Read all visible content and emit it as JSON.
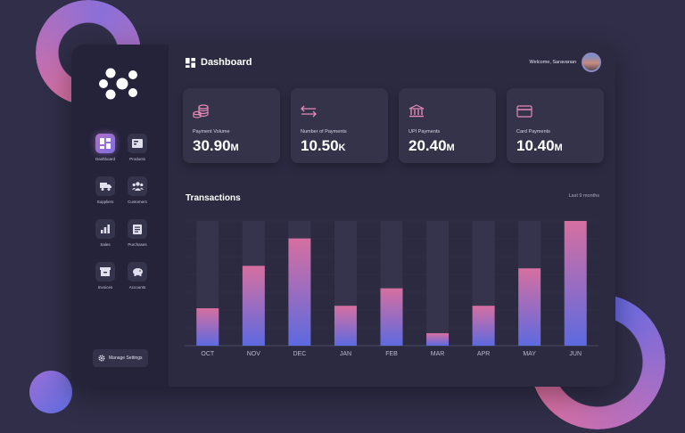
{
  "header": {
    "title": "Dashboard",
    "welcome": "Welcome, Saravanan"
  },
  "sidebar": {
    "items": [
      {
        "label": "Dashboard",
        "icon": "dashboard-icon",
        "active": true
      },
      {
        "label": "Products",
        "icon": "products-icon",
        "active": false
      },
      {
        "label": "Suppliers",
        "icon": "truck-icon",
        "active": false
      },
      {
        "label": "Customers",
        "icon": "customers-icon",
        "active": false
      },
      {
        "label": "Sales",
        "icon": "bar-chart-icon",
        "active": false
      },
      {
        "label": "Purchases",
        "icon": "receipt-icon",
        "active": false
      },
      {
        "label": "Invoices",
        "icon": "invoice-icon",
        "active": false
      },
      {
        "label": "Accounts",
        "icon": "piggy-bank-icon",
        "active": false
      }
    ],
    "settings_label": "Manage Settings"
  },
  "stats": [
    {
      "label": "Payment Volume",
      "value": "30.90",
      "unit": "M",
      "icon": "coins-icon"
    },
    {
      "label": "Number of Payments",
      "value": "10.50",
      "unit": "K",
      "icon": "transfer-arrows-icon"
    },
    {
      "label": "UPI Payments",
      "value": "20.40",
      "unit": "M",
      "icon": "bank-icon"
    },
    {
      "label": "Card Payments",
      "value": "10.40",
      "unit": "M",
      "icon": "credit-card-icon"
    }
  ],
  "transactions": {
    "title": "Transactions",
    "range_label": "Last 9 months"
  },
  "colors": {
    "accent_pink": "#d66fa0",
    "accent_blue": "#5d6ae0",
    "icon_pink": "#e58bb8"
  },
  "chart_data": {
    "type": "bar",
    "categories": [
      "OCT",
      "NOV",
      "DEC",
      "JAN",
      "FEB",
      "MAR",
      "APR",
      "MAY",
      "JUN"
    ],
    "values": [
      30,
      64,
      86,
      32,
      46,
      10,
      32,
      62,
      100
    ],
    "ylim": [
      0,
      100
    ],
    "grid": true
  }
}
